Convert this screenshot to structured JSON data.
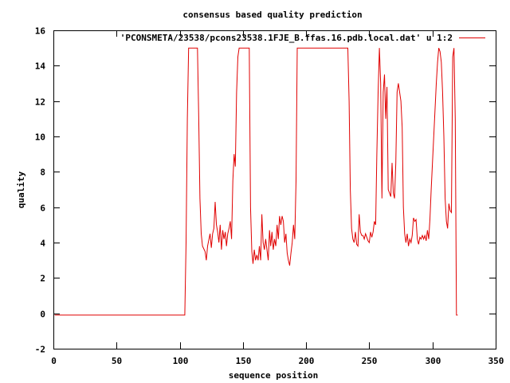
{
  "chart_data": {
    "type": "line",
    "title": "consensus based quality prediction",
    "xlabel": "sequence position",
    "ylabel": "quality",
    "xlim": [
      0,
      350
    ],
    "ylim": [
      -2,
      16
    ],
    "x_ticks": [
      0,
      50,
      100,
      150,
      200,
      250,
      300,
      350
    ],
    "y_ticks": [
      -2,
      0,
      2,
      4,
      6,
      8,
      10,
      12,
      14,
      16
    ],
    "grid": false,
    "legend_position": "top-right",
    "series": [
      {
        "name": "'PCONSMETA/23538/pcons23538.1FJE_B.ffas.16.pdb.local.dat' u 1:2",
        "color": "#e00000",
        "points": [
          [
            1,
            -0.1
          ],
          [
            104,
            -0.1
          ],
          [
            105,
            4
          ],
          [
            106,
            11
          ],
          [
            107,
            15
          ],
          [
            114,
            15
          ],
          [
            115,
            11
          ],
          [
            116,
            6.5
          ],
          [
            117,
            4.5
          ],
          [
            118,
            3.8
          ],
          [
            120,
            3.5
          ],
          [
            121,
            3.0
          ],
          [
            122,
            3.8
          ],
          [
            124,
            4.5
          ],
          [
            125,
            3.7
          ],
          [
            126,
            4.5
          ],
          [
            127,
            4.8
          ],
          [
            128,
            6.3
          ],
          [
            129,
            5.0
          ],
          [
            130,
            4.6
          ],
          [
            131,
            4.0
          ],
          [
            132,
            5.0
          ],
          [
            133,
            3.6
          ],
          [
            134,
            4.7
          ],
          [
            135,
            4.2
          ],
          [
            136,
            4.6
          ],
          [
            137,
            3.8
          ],
          [
            138,
            4.5
          ],
          [
            139,
            4.8
          ],
          [
            140,
            5.2
          ],
          [
            141,
            4.2
          ],
          [
            142,
            7.5
          ],
          [
            143,
            9.0
          ],
          [
            144,
            8.3
          ],
          [
            145,
            12.5
          ],
          [
            146,
            14.5
          ],
          [
            147,
            15
          ],
          [
            155,
            15
          ],
          [
            156,
            6
          ],
          [
            157,
            3.5
          ],
          [
            158,
            2.8
          ],
          [
            159,
            3.6
          ],
          [
            160,
            3.0
          ],
          [
            161,
            3.3
          ],
          [
            162,
            3.0
          ],
          [
            163,
            3.8
          ],
          [
            164,
            3.0
          ],
          [
            165,
            5.6
          ],
          [
            166,
            4.0
          ],
          [
            167,
            3.6
          ],
          [
            168,
            4.2
          ],
          [
            169,
            3.6
          ],
          [
            170,
            3.0
          ],
          [
            171,
            4.7
          ],
          [
            172,
            3.8
          ],
          [
            173,
            4.6
          ],
          [
            174,
            3.6
          ],
          [
            175,
            4.2
          ],
          [
            176,
            3.8
          ],
          [
            177,
            5.0
          ],
          [
            178,
            4.2
          ],
          [
            179,
            5.5
          ],
          [
            180,
            5.0
          ],
          [
            181,
            5.5
          ],
          [
            182,
            5.2
          ],
          [
            183,
            4.0
          ],
          [
            184,
            4.5
          ],
          [
            185,
            3.4
          ],
          [
            186,
            3.0
          ],
          [
            187,
            2.7
          ],
          [
            188,
            3.4
          ],
          [
            189,
            4.0
          ],
          [
            190,
            5.0
          ],
          [
            191,
            4.2
          ],
          [
            192,
            7.5
          ],
          [
            193,
            15
          ],
          [
            233,
            15
          ],
          [
            234,
            12
          ],
          [
            235,
            7
          ],
          [
            236,
            4.8
          ],
          [
            237,
            4.2
          ],
          [
            238,
            4.0
          ],
          [
            239,
            4.6
          ],
          [
            240,
            3.9
          ],
          [
            241,
            3.8
          ],
          [
            242,
            5.6
          ],
          [
            243,
            4.6
          ],
          [
            244,
            4.4
          ],
          [
            245,
            4.4
          ],
          [
            246,
            4.2
          ],
          [
            247,
            4.5
          ],
          [
            248,
            4.3
          ],
          [
            249,
            4.1
          ],
          [
            250,
            4.0
          ],
          [
            251,
            4.6
          ],
          [
            252,
            4.3
          ],
          [
            253,
            4.6
          ],
          [
            254,
            5.2
          ],
          [
            255,
            5.0
          ],
          [
            256,
            9.0
          ],
          [
            257,
            12.5
          ],
          [
            258,
            15
          ],
          [
            259,
            13
          ],
          [
            260,
            6.5
          ],
          [
            261,
            12.5
          ],
          [
            262,
            13.5
          ],
          [
            263,
            11
          ],
          [
            264,
            12.8
          ],
          [
            265,
            7
          ],
          [
            266,
            6.8
          ],
          [
            267,
            6.6
          ],
          [
            268,
            8.5
          ],
          [
            269,
            6.8
          ],
          [
            270,
            6.5
          ],
          [
            271,
            8.5
          ],
          [
            272,
            12.5
          ],
          [
            273,
            13
          ],
          [
            274,
            12.5
          ],
          [
            275,
            12
          ],
          [
            276,
            10.5
          ],
          [
            277,
            6
          ],
          [
            278,
            4.5
          ],
          [
            279,
            4.0
          ],
          [
            280,
            4.5
          ],
          [
            281,
            3.8
          ],
          [
            282,
            4.2
          ],
          [
            283,
            4.0
          ],
          [
            284,
            4.4
          ],
          [
            285,
            5.4
          ],
          [
            286,
            5.2
          ],
          [
            287,
            5.3
          ],
          [
            288,
            4.2
          ],
          [
            289,
            3.9
          ],
          [
            290,
            4.3
          ],
          [
            291,
            4.2
          ],
          [
            292,
            4.4
          ],
          [
            293,
            4.2
          ],
          [
            294,
            4.4
          ],
          [
            295,
            4.1
          ],
          [
            296,
            4.7
          ],
          [
            297,
            4.2
          ],
          [
            298,
            5.3
          ],
          [
            299,
            7
          ],
          [
            300,
            8.5
          ],
          [
            301,
            10
          ],
          [
            302,
            11.5
          ],
          [
            303,
            13
          ],
          [
            304,
            14.2
          ],
          [
            305,
            15
          ],
          [
            306,
            14.8
          ],
          [
            307,
            14.2
          ],
          [
            308,
            12.5
          ],
          [
            309,
            10
          ],
          [
            310,
            6.5
          ],
          [
            311,
            5.2
          ],
          [
            312,
            4.8
          ],
          [
            313,
            6.2
          ],
          [
            314,
            5.8
          ],
          [
            315,
            5.7
          ],
          [
            316,
            14.5
          ],
          [
            317,
            15
          ],
          [
            318,
            11
          ],
          [
            319,
            -0.1
          ],
          [
            320,
            -0.1
          ]
        ]
      }
    ]
  }
}
